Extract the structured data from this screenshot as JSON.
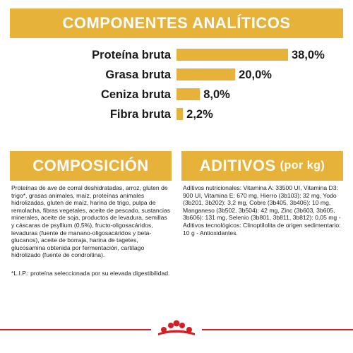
{
  "header": {
    "title": "COMPONENTES ANALÍTICOS"
  },
  "chart_data": {
    "type": "bar",
    "orientation": "horizontal",
    "categories": [
      "Proteína bruta",
      "Grasa bruta",
      "Ceniza bruta",
      "Fibra bruta"
    ],
    "values": [
      38.0,
      20.0,
      8.0,
      2.2
    ],
    "value_labels": [
      "38,0%",
      "20,0%",
      "8,0%",
      "2,2%"
    ],
    "unit": "%",
    "xlim": [
      0,
      38
    ],
    "bar_color": "#e7b23a",
    "grid": false,
    "legend": "none"
  },
  "composicion": {
    "title": "COMPOSICIÓN",
    "text": "Proteínas de ave de corral deshidratadas, arroz, gluten de trigo*, grasas animales, maíz, proteínas animales hidrolizadas, gluten de maíz, harina de trigo, pulpa de remolacha, fibras vegetales, aceite de pescado, sustancias minerales, aceite de soja, productos de levadura, semillas y cáscaras de psyllium (0,5%), fructo-oligosacáridos, levaduras (fuente de manano-oligosacáridos y beta-glucanos), aceite de borraja, harina de tagetes, glucosamina obtenida por fermentación, cartílago hidrolizado (fuente de condroitina).",
    "footnote": "*L.I.P.: proteína seleccionada por su elevada digestibilidad."
  },
  "aditivos": {
    "title": "ADITIVOS",
    "title_suffix": "(por kg)",
    "text": "Aditivos nutricionales: Vitamina A: 33500 UI, Vitamina D3: 900 UI, Vitamina E: 670 mg, Hierro (3b103): 32 mg, Yodo (3b201, 3b202): 3,2 mg, Cobre (3b405, 3b406): 10 mg, Manganeso (3b502, 3b504): 42 mg, Zinc (3b603, 3b605, 3b606): 131 mg, Selenio (3b801, 3b811, 3b812): 0,05 mg - Aditivos tecnológicos: Clinoptilolita de origen sedimentario: 10 g - Antioxidantes."
  },
  "colors": {
    "accent": "#e7b23a",
    "brand_red": "#d41f28"
  },
  "logo": {
    "icon": "royal-canin-crown-icon"
  }
}
